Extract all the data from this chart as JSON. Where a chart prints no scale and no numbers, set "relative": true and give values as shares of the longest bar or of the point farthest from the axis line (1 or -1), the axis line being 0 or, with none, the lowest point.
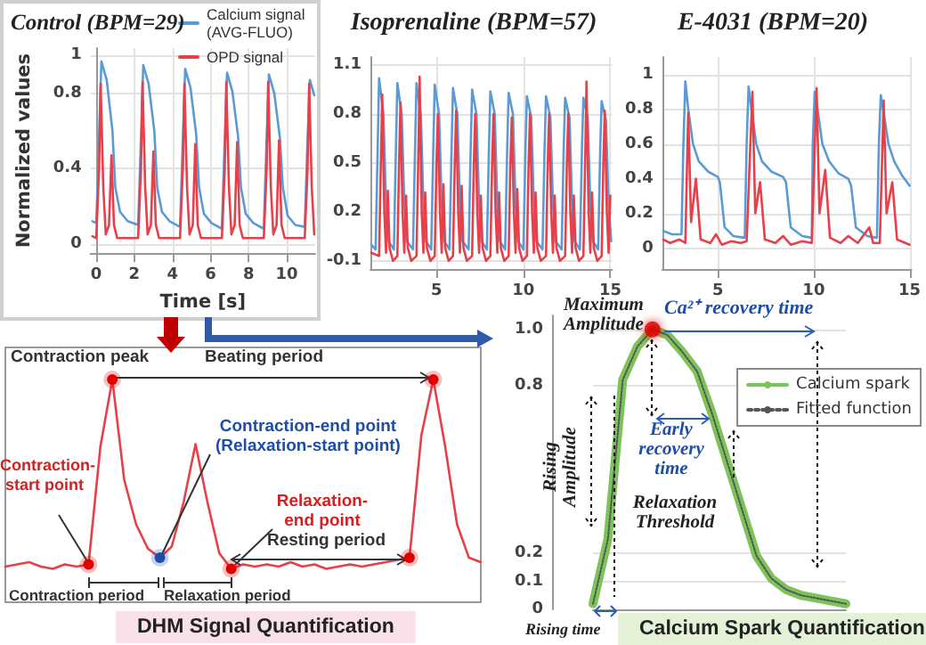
{
  "chart_data": [
    {
      "type": "line",
      "title": "Control (BPM=29)",
      "xlabel": "Time [s]",
      "ylabel": "Normalized values",
      "xlim": [
        -0.3,
        11.5
      ],
      "xticks": [
        0,
        2,
        4,
        6,
        8,
        10
      ],
      "ylim": [
        -0.05,
        1.04
      ],
      "yticks": [
        0,
        0.4,
        0.8,
        1
      ],
      "grid": true,
      "legend": "top right",
      "marker": "none",
      "series": [
        {
          "name": "Calcium signal (AVG-FLUO)",
          "color": "#5b9bd5",
          "x": [
            -0.2,
            0.0,
            0.13,
            0.27,
            0.55,
            0.85,
            1.0,
            1.25,
            1.65,
            2.2,
            2.33,
            2.47,
            2.75,
            3.05,
            3.2,
            3.45,
            3.85,
            4.4,
            4.53,
            4.67,
            4.95,
            5.25,
            5.4,
            5.65,
            6.05,
            6.6,
            6.73,
            6.87,
            7.15,
            7.45,
            7.6,
            7.85,
            8.25,
            8.8,
            8.93,
            9.07,
            9.35,
            9.65,
            9.8,
            10.05,
            10.45,
            10.95,
            11.08,
            11.22,
            11.45
          ],
          "values": [
            0.12,
            0.11,
            0.5,
            0.97,
            0.87,
            0.6,
            0.3,
            0.17,
            0.12,
            0.1,
            0.5,
            0.95,
            0.85,
            0.6,
            0.3,
            0.17,
            0.12,
            0.09,
            0.5,
            0.93,
            0.83,
            0.58,
            0.3,
            0.16,
            0.11,
            0.08,
            0.5,
            0.91,
            0.81,
            0.57,
            0.3,
            0.16,
            0.11,
            0.08,
            0.5,
            0.9,
            0.8,
            0.56,
            0.3,
            0.15,
            0.1,
            0.09,
            0.5,
            0.87,
            0.79
          ]
        },
        {
          "name": "OPD signal",
          "color": "#e8404a",
          "x": [
            -0.2,
            0.0,
            0.15,
            0.23,
            0.37,
            0.5,
            0.67,
            0.8,
            0.93,
            1.1,
            1.8,
            2.2,
            2.35,
            2.43,
            2.57,
            2.7,
            2.87,
            3.0,
            3.13,
            3.3,
            4.0,
            4.4,
            4.55,
            4.63,
            4.77,
            4.9,
            5.07,
            5.2,
            5.33,
            5.5,
            6.2,
            6.6,
            6.75,
            6.83,
            6.97,
            7.1,
            7.27,
            7.4,
            7.53,
            7.7,
            8.4,
            8.8,
            8.95,
            9.03,
            9.17,
            9.3,
            9.47,
            9.6,
            9.73,
            9.9,
            10.6,
            10.95,
            11.1,
            11.18,
            11.32,
            11.45
          ],
          "values": [
            0.04,
            0.03,
            0.4,
            0.85,
            0.3,
            0.05,
            0.1,
            0.47,
            0.1,
            0.03,
            0.03,
            0.03,
            0.4,
            0.86,
            0.3,
            0.05,
            0.1,
            0.49,
            0.1,
            0.03,
            0.03,
            0.03,
            0.4,
            0.85,
            0.3,
            0.05,
            0.1,
            0.53,
            0.1,
            0.03,
            0.03,
            0.03,
            0.4,
            0.86,
            0.3,
            0.05,
            0.1,
            0.54,
            0.1,
            0.03,
            0.03,
            0.03,
            0.4,
            0.86,
            0.3,
            0.05,
            0.1,
            0.55,
            0.1,
            0.03,
            0.03,
            0.03,
            0.4,
            0.85,
            0.3,
            0.05
          ]
        }
      ]
    },
    {
      "type": "line",
      "title": "Isoprenaline (BPM=57)",
      "xlim": [
        1.2,
        15.1
      ],
      "xticks": [
        5,
        10,
        15
      ],
      "ylim": [
        -0.15,
        1.15
      ],
      "yticks": [
        -0.1,
        0.2,
        0.5,
        0.8,
        1.1
      ],
      "grid": true,
      "marker": "none",
      "series": [
        {
          "color": "#5b9bd5",
          "x": [
            1.25,
            1.5,
            1.62,
            1.7,
            1.95,
            2.1,
            2.25,
            2.55,
            2.67,
            2.75,
            3.0,
            3.15,
            3.3,
            3.65,
            3.77,
            3.85,
            4.1,
            4.25,
            4.4,
            4.7,
            4.82,
            4.9,
            5.15,
            5.3,
            5.45,
            5.75,
            5.87,
            5.95,
            6.2,
            6.35,
            6.5,
            6.85,
            6.97,
            7.05,
            7.3,
            7.45,
            7.6,
            7.9,
            8.02,
            8.1,
            8.35,
            8.5,
            8.65,
            8.95,
            9.07,
            9.15,
            9.4,
            9.55,
            9.7,
            10.0,
            10.12,
            10.2,
            10.45,
            10.6,
            10.75,
            11.1,
            11.22,
            11.3,
            11.55,
            11.7,
            11.85,
            12.2,
            12.32,
            12.4,
            12.65,
            12.8,
            12.95,
            13.25,
            13.37,
            13.45,
            13.7,
            13.85,
            14.0,
            14.3,
            14.42,
            14.5,
            14.75,
            14.9,
            15.05
          ],
          "values": [
            0.0,
            -0.03,
            0.6,
            1.02,
            0.8,
            0.25,
            0.02,
            -0.03,
            0.6,
            0.99,
            0.8,
            0.25,
            0.02,
            -0.03,
            0.6,
            0.99,
            0.8,
            0.25,
            0.02,
            -0.03,
            0.6,
            0.98,
            0.8,
            0.25,
            0.02,
            -0.03,
            0.6,
            0.96,
            0.8,
            0.25,
            0.02,
            -0.03,
            0.6,
            0.95,
            0.8,
            0.25,
            0.02,
            -0.03,
            0.6,
            0.94,
            0.8,
            0.25,
            0.02,
            -0.03,
            0.6,
            0.93,
            0.8,
            0.25,
            0.02,
            -0.03,
            0.6,
            0.91,
            0.78,
            0.25,
            0.02,
            -0.03,
            0.6,
            0.91,
            0.78,
            0.25,
            0.02,
            -0.03,
            0.6,
            0.9,
            0.78,
            0.25,
            0.02,
            -0.03,
            0.6,
            0.9,
            0.78,
            0.25,
            0.02,
            -0.03,
            0.6,
            0.88,
            0.76,
            0.25,
            0.02
          ]
        },
        {
          "color": "#e8404a",
          "x": [
            1.25,
            1.7,
            1.8,
            1.88,
            2.0,
            2.1,
            2.2,
            2.3,
            2.5,
            2.75,
            2.85,
            2.93,
            3.05,
            3.15,
            3.25,
            3.35,
            3.55,
            3.85,
            3.95,
            4.03,
            4.15,
            4.25,
            4.35,
            4.45,
            4.65,
            4.9,
            5.0,
            5.08,
            5.2,
            5.3,
            5.4,
            5.5,
            5.7,
            5.95,
            6.05,
            6.13,
            6.25,
            6.35,
            6.45,
            6.55,
            6.75,
            7.05,
            7.15,
            7.23,
            7.35,
            7.45,
            7.55,
            7.65,
            7.85,
            8.1,
            8.2,
            8.28,
            8.4,
            8.5,
            8.6,
            8.7,
            8.9,
            9.15,
            9.25,
            9.33,
            9.45,
            9.55,
            9.65,
            9.75,
            9.95,
            10.2,
            10.3,
            10.38,
            10.5,
            10.6,
            10.7,
            10.8,
            11.0,
            11.3,
            11.4,
            11.48,
            11.6,
            11.7,
            11.8,
            11.9,
            12.1,
            12.4,
            12.5,
            12.58,
            12.7,
            12.8,
            12.9,
            13.0,
            13.2,
            13.45,
            13.55,
            13.63,
            13.75,
            13.85,
            13.95,
            14.05,
            14.25,
            14.5,
            14.6,
            14.68,
            14.8,
            14.9,
            15.0
          ],
          "values": [
            -0.05,
            -0.07,
            0.5,
            0.92,
            0.2,
            -0.05,
            0.33,
            -0.02,
            -0.1,
            -0.07,
            0.5,
            0.87,
            0.2,
            -0.05,
            0.3,
            -0.02,
            -0.1,
            -0.07,
            0.5,
            1.03,
            0.2,
            -0.05,
            0.32,
            -0.02,
            -0.1,
            -0.07,
            0.5,
            0.8,
            0.2,
            -0.05,
            0.37,
            -0.02,
            -0.1,
            -0.07,
            0.5,
            0.82,
            0.2,
            -0.05,
            0.36,
            -0.02,
            -0.1,
            -0.07,
            0.5,
            0.8,
            0.2,
            -0.05,
            0.3,
            -0.02,
            -0.1,
            -0.07,
            0.5,
            0.8,
            0.2,
            -0.05,
            0.32,
            -0.02,
            -0.1,
            -0.07,
            0.5,
            0.78,
            0.2,
            -0.05,
            0.34,
            -0.02,
            -0.1,
            -0.07,
            0.5,
            0.8,
            0.2,
            -0.05,
            0.32,
            -0.02,
            -0.1,
            -0.07,
            0.5,
            0.8,
            0.2,
            -0.05,
            0.3,
            -0.02,
            -0.1,
            -0.07,
            0.5,
            0.8,
            0.2,
            -0.05,
            0.3,
            -0.02,
            -0.1,
            -0.07,
            0.5,
            1.0,
            0.2,
            -0.05,
            0.32,
            -0.02,
            -0.1,
            -0.07,
            0.5,
            0.82,
            0.2,
            -0.05,
            0.3
          ]
        }
      ]
    },
    {
      "type": "line",
      "title": "E-4031 (BPM=20)",
      "xlim": [
        2.1,
        15.1
      ],
      "xticks": [
        5,
        10,
        15
      ],
      "ylim": [
        -0.12,
        1.1
      ],
      "yticks": [
        0,
        0.2,
        0.4,
        0.6,
        0.8,
        1
      ],
      "grid": true,
      "marker": "none",
      "series": [
        {
          "color": "#5b9bd5",
          "x": [
            2.15,
            2.6,
            3.1,
            3.2,
            3.3,
            3.45,
            3.7,
            4.0,
            4.5,
            5.0,
            5.1,
            5.35,
            5.8,
            6.4,
            6.5,
            6.6,
            6.75,
            7.0,
            7.3,
            7.8,
            8.4,
            8.55,
            8.8,
            9.4,
            9.9,
            9.95,
            10.05,
            10.2,
            10.45,
            10.8,
            11.3,
            11.8,
            11.95,
            12.2,
            12.8,
            13.3,
            13.4,
            13.5,
            13.65,
            13.9,
            14.2,
            14.6,
            15.0
          ],
          "values": [
            0.1,
            0.08,
            0.08,
            0.6,
            0.96,
            0.8,
            0.6,
            0.5,
            0.44,
            0.41,
            0.38,
            0.12,
            0.07,
            0.06,
            0.6,
            0.93,
            0.8,
            0.6,
            0.5,
            0.44,
            0.41,
            0.38,
            0.12,
            0.07,
            0.06,
            0.6,
            0.9,
            0.8,
            0.6,
            0.5,
            0.43,
            0.4,
            0.36,
            0.12,
            0.07,
            0.06,
            0.6,
            0.88,
            0.78,
            0.6,
            0.5,
            0.42,
            0.36
          ]
        },
        {
          "color": "#e8404a",
          "x": [
            2.15,
            2.5,
            3.0,
            3.3,
            3.45,
            3.6,
            3.85,
            4.1,
            4.6,
            4.9,
            5.2,
            5.7,
            6.2,
            6.5,
            6.8,
            6.95,
            7.2,
            7.45,
            8.0,
            8.4,
            8.8,
            9.4,
            9.9,
            10.15,
            10.3,
            10.6,
            10.85,
            11.4,
            11.8,
            12.3,
            12.9,
            13.1,
            13.45,
            13.65,
            13.8,
            14.1,
            14.35,
            15.0
          ],
          "values": [
            0.05,
            0.03,
            0.05,
            0.03,
            0.78,
            0.15,
            0.4,
            0.05,
            0.03,
            0.08,
            0.02,
            0.04,
            0.03,
            0.04,
            0.9,
            0.2,
            0.38,
            0.05,
            0.03,
            0.07,
            0.02,
            0.04,
            0.03,
            0.92,
            0.2,
            0.45,
            0.06,
            0.03,
            0.07,
            0.03,
            0.12,
            0.03,
            0.03,
            0.85,
            0.2,
            0.38,
            0.05,
            0.02
          ]
        }
      ]
    },
    {
      "type": "line",
      "title": "DHM Signal Quantification",
      "relative": true,
      "marker": "none",
      "categories": [
        null,
        null,
        null,
        null,
        null,
        null,
        null,
        null,
        null,
        null,
        null,
        null,
        null,
        null,
        null,
        null,
        null,
        null,
        null,
        null,
        null,
        null,
        null,
        null,
        null,
        null,
        null,
        null,
        null,
        null,
        null,
        null,
        null,
        null,
        null,
        null,
        null,
        null,
        null,
        null,
        null
      ],
      "annotations": [
        "Contraction peak",
        "Beating period",
        "Contraction-end point (Relaxation-start point)",
        "Contraction-start point",
        "Relaxation-end point",
        "Resting period",
        "Contraction period",
        "Relaxation period"
      ],
      "series": [
        {
          "color": "#e8404a",
          "values": [
            0.16,
            0.17,
            0.18,
            0.16,
            0.15,
            0.17,
            0.16,
            0.17,
            0.7,
            1.0,
            0.55,
            0.35,
            0.24,
            0.2,
            0.25,
            0.45,
            0.71,
            0.45,
            0.22,
            0.15,
            0.17,
            0.16,
            0.17,
            0.16,
            0.18,
            0.16,
            0.17,
            0.15,
            0.16,
            0.17,
            0.16,
            0.17,
            0.18,
            0.19,
            0.2,
            0.75,
            1.0,
            0.7,
            0.35,
            0.2,
            0.18
          ]
        }
      ]
    },
    {
      "type": "line",
      "title": "Calcium Spark Quantification",
      "ylim": [
        0,
        1.05
      ],
      "yticks": [
        0,
        0.1,
        0.2,
        0.8,
        {
          "value": 1,
          "label": "1.0"
        }
      ],
      "grid": "y",
      "legend": "top right",
      "marker": "none",
      "categories": [
        null,
        null,
        null,
        null,
        null,
        null,
        null,
        null,
        null,
        null,
        null,
        null,
        null,
        null,
        null,
        null,
        null,
        null
      ],
      "annotations": [
        "Maximum Amplitude",
        "Ca²⁺ recovery time",
        "Rising Amplitude",
        "Early recovery time",
        "Relaxation Threshold",
        "Rising time"
      ],
      "series": [
        {
          "name": "Calcium spark",
          "color": "#7cc45a",
          "values": [
            0.02,
            0.25,
            0.82,
            0.94,
            1.0,
            0.98,
            0.92,
            0.85,
            0.7,
            0.53,
            0.36,
            0.19,
            0.11,
            0.07,
            0.05,
            0.04,
            0.03,
            0.02
          ]
        },
        {
          "name": "Fitted function",
          "color": "#555555",
          "line_style": "dotted",
          "values": [
            0.02,
            0.25,
            0.82,
            0.94,
            1.0,
            0.98,
            0.92,
            0.85,
            0.7,
            0.53,
            0.36,
            0.19,
            0.11,
            0.07,
            0.05,
            0.04,
            0.03,
            0.02
          ]
        },
        {
          "type": "scatter",
          "marker": "circle",
          "color": "#e00000",
          "values": [
            null,
            null,
            null,
            null,
            1.0,
            null,
            null,
            null,
            null,
            null,
            null,
            null,
            null,
            null,
            null,
            null,
            null,
            null
          ]
        }
      ]
    }
  ]
}
